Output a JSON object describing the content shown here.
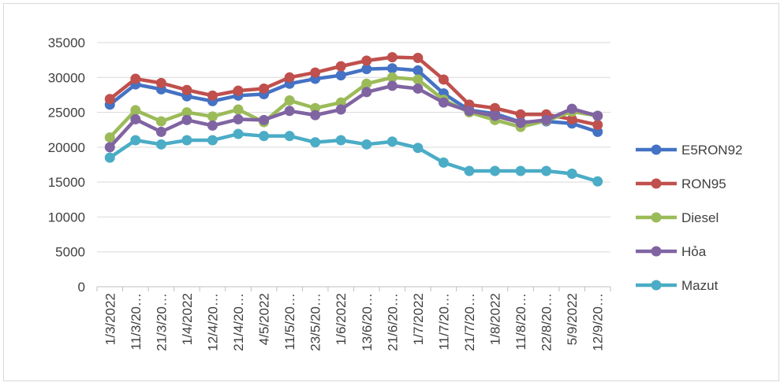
{
  "chart_data": {
    "type": "line",
    "title": "",
    "xlabel": "",
    "ylabel": "",
    "ylim": [
      0,
      35000
    ],
    "y_ticks": [
      0,
      5000,
      10000,
      15000,
      20000,
      25000,
      30000,
      35000
    ],
    "grid": "horizontal",
    "legend": "right",
    "categories": [
      "1/3/2022",
      "11/3/20…",
      "21/3/20…",
      "1/4/2022",
      "12/4/20…",
      "21/4/20…",
      "4/5/2022",
      "11/5/20…",
      "23/5/20…",
      "1/6/2022",
      "13/6/20…",
      "21/6/20…",
      "1/7/2022",
      "11/7/20…",
      "21/7/20…",
      "1/8/2022",
      "11/8/20…",
      "22/8/20…",
      "5/9/2022",
      "12/9/20…"
    ],
    "series": [
      {
        "name": "E5RON92",
        "color": "#4472c4",
        "values": [
          26100,
          29000,
          28300,
          27300,
          26600,
          27400,
          27600,
          29100,
          29800,
          30300,
          31200,
          31300,
          31000,
          27700,
          25300,
          24800,
          23600,
          23700,
          23400,
          22200
        ]
      },
      {
        "name": "RON95",
        "color": "#c0504d",
        "values": [
          26900,
          29800,
          29200,
          28200,
          27400,
          28100,
          28400,
          30000,
          30700,
          31600,
          32400,
          32900,
          32800,
          29700,
          26100,
          25600,
          24700,
          24700,
          24000,
          23200
        ]
      },
      {
        "name": "Diesel",
        "color": "#9bbb59",
        "values": [
          21400,
          25300,
          23700,
          25000,
          24400,
          25400,
          23600,
          26700,
          25600,
          26400,
          29100,
          30000,
          29700,
          26800,
          25000,
          23900,
          22900,
          23800,
          25100,
          24500
        ]
      },
      {
        "name": "Hỏa",
        "color": "#8064a2",
        "values": [
          20000,
          24000,
          22200,
          23900,
          23100,
          24000,
          23900,
          25200,
          24600,
          25400,
          27900,
          28800,
          28400,
          26400,
          25200,
          24500,
          23500,
          23900,
          25500,
          24500
        ]
      },
      {
        "name": "Mazut",
        "color": "#4bacc6",
        "values": [
          18500,
          21000,
          20400,
          21000,
          21000,
          21900,
          21600,
          21600,
          20700,
          21000,
          20400,
          20800,
          19900,
          17800,
          16600,
          16600,
          16600,
          16600,
          16200,
          15100
        ]
      }
    ]
  }
}
